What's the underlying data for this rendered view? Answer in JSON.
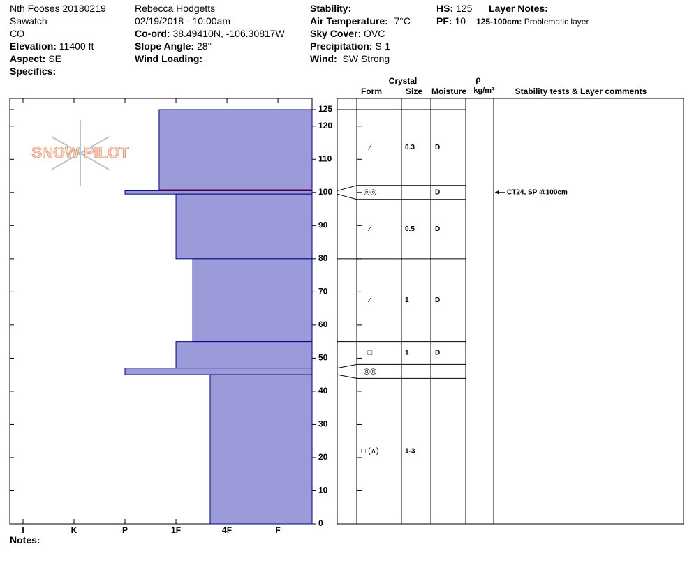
{
  "logo": "SNOW PILOT",
  "header": {
    "site": "Nth Fooses 20180219",
    "range": "Sawatch",
    "state": "CO",
    "elevation_label": "Elevation:",
    "elevation": "11400 ft",
    "aspect_label": "Aspect:",
    "aspect": "SE",
    "specifics_label": "Specifics:",
    "observer": "Rebecca Hodgetts",
    "datetime": "02/19/2018 - 10:00am",
    "coord_label": "Co-ord:",
    "coord": "38.49410N, -106.30817W",
    "slope_label": "Slope Angle:",
    "slope": "28°",
    "wind_loading_label": "Wind Loading:",
    "stability_label": "Stability:",
    "air_temp_label": "Air Temperature:",
    "air_temp": "-7°C",
    "sky_label": "Sky Cover:",
    "sky": "OVC",
    "precip_label": "Precipitation:",
    "precip": "S-1",
    "wind_label": "Wind:",
    "wind": "SW Strong",
    "hs_label": "HS:",
    "hs": 125,
    "pf_label": "PF:",
    "pf": 10,
    "layer_notes_label": "Layer Notes:",
    "layer_note_range": "125-100cm:",
    "layer_note": "Problematic layer"
  },
  "table_headers": {
    "crystal": "Crystal",
    "form": "Form",
    "size": "Size",
    "moisture": "Moisture",
    "rho": "ρ",
    "density_unit": "kg/m³",
    "comments": "Stability tests & Layer comments"
  },
  "notes_label": "Notes:",
  "profile": {
    "depth_lim": [
      0,
      125
    ],
    "depth_ticks": [
      0,
      10,
      20,
      30,
      40,
      50,
      60,
      70,
      80,
      90,
      100,
      110,
      120,
      125
    ],
    "hardness_lim": [
      0.33,
      6.26
    ],
    "hardness_ticks": [
      {
        "value": 6,
        "label": "I"
      },
      {
        "value": 5,
        "label": "K"
      },
      {
        "value": 4,
        "label": "P"
      },
      {
        "value": 3,
        "label": "1F"
      },
      {
        "value": 2,
        "label": "4F"
      },
      {
        "value": 1,
        "label": "F"
      }
    ],
    "fill": "#9b9bd9",
    "edge_color": "#000080",
    "problem_color": "#cc0000",
    "layers": [
      {
        "top": 125,
        "bottom": 100.5,
        "hardness": 3.33,
        "problematic": true,
        "form": "⁄",
        "size": 0.3,
        "moisture": "D"
      },
      {
        "top": 100.5,
        "bottom": 99.5,
        "hardness": 4,
        "form": "◎◎",
        "moisture": "D"
      },
      {
        "top": 99.5,
        "bottom": 80,
        "hardness": 3,
        "form": "⁄",
        "size": 0.5,
        "moisture": "D"
      },
      {
        "top": 80,
        "bottom": 55,
        "hardness": 2.67,
        "form": "⁄",
        "size": 1,
        "moisture": "D"
      },
      {
        "top": 55,
        "bottom": 47,
        "hardness": 3,
        "form": "□",
        "size": 1,
        "moisture": "D"
      },
      {
        "top": 47,
        "bottom": 45,
        "hardness": 4,
        "form": "◎◎"
      },
      {
        "top": 45,
        "bottom": 0,
        "hardness": 2.33,
        "form": "□ (∧)",
        "size": "1-3"
      }
    ],
    "tests": [
      {
        "depth": 100,
        "label": "CT24, SP @100cm"
      }
    ]
  }
}
